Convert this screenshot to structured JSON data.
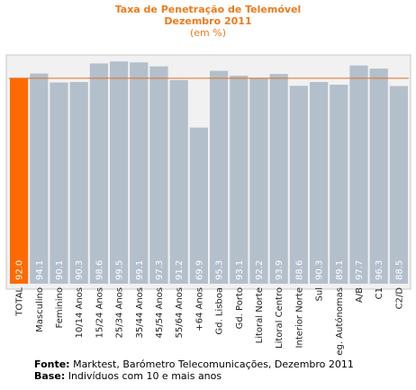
{
  "title": {
    "line1": "Taxa de Penetração de Telemóvel",
    "line2": "Dezembro 2011",
    "line3": "(em %)"
  },
  "footer": {
    "fonte_label": "Fonte:",
    "fonte_text": "Marktest, Barómetro Telecomunicações, Dezembro 2011",
    "base_label": "Base:",
    "base_text": "Indivíduos com 10 e mais anos"
  },
  "colors": {
    "highlight": "#ff6a00",
    "bar": "#b4bfcc",
    "reference_line": "#e07020",
    "plot_bg": "#f1f1f1",
    "label": "#ffffff"
  },
  "chart_data": {
    "type": "bar",
    "categories": [
      "TOTAL",
      "Masculino",
      "Feminino",
      "10/14 Anos",
      "15/24 Anos",
      "25/34 Anos",
      "35/44 Anos",
      "45/54 Anos",
      "55/64 Anos",
      "+64 Anos",
      "Gd. Lisboa",
      "Gd. Porto",
      "Litoral Norte",
      "Litoral Centro",
      "Interior Norte",
      "Sul",
      "Reg. Autónomas",
      "A/B",
      "C1",
      "C2/D"
    ],
    "values": [
      92.0,
      94.1,
      90.1,
      90.3,
      98.6,
      99.5,
      99.1,
      97.3,
      91.2,
      69.9,
      95.3,
      93.1,
      92.2,
      93.9,
      88.6,
      90.3,
      89.1,
      97.7,
      96.3,
      88.5
    ],
    "value_labels": [
      "92.0",
      "94.1",
      "90.1",
      "90.3",
      "98.6",
      "99.5",
      "99.1",
      "97.3",
      "91.2",
      "69.9",
      "95.3",
      "93.1",
      "92.2",
      "93.9",
      "88.6",
      "90.3",
      "89.1",
      "97.7",
      "96.3",
      "88.5"
    ],
    "highlight_index": 0,
    "reference_value": 92.0,
    "ylim": [
      0,
      100
    ],
    "grid": false,
    "legend": "none"
  }
}
